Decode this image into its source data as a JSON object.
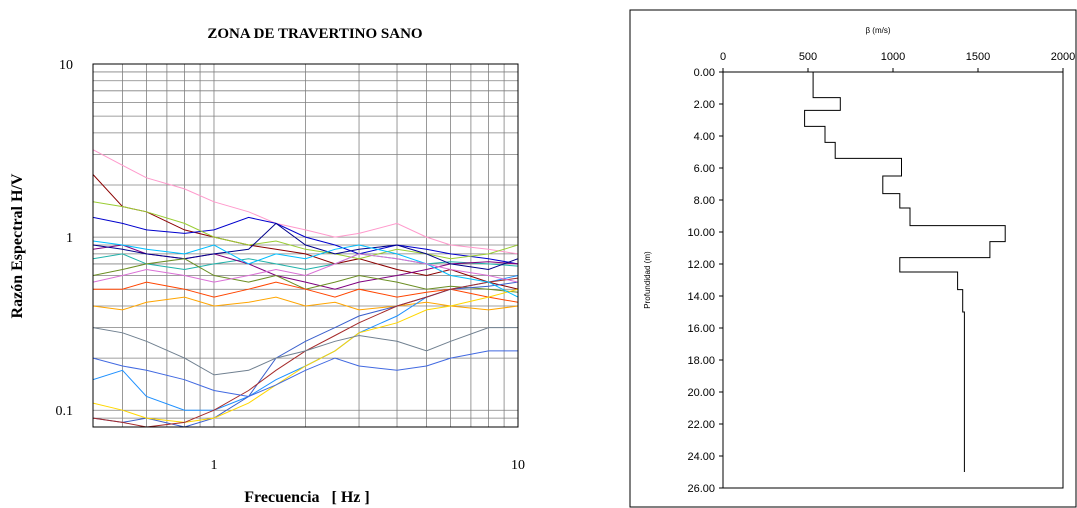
{
  "chart_data": [
    {
      "type": "line",
      "title": "ZONA DE TRAVERTINO SANO",
      "xlabel": "Frecuencia   [ Hz ]",
      "ylabel": "Razón Espectral H/V",
      "x_scale": "log",
      "y_scale": "log",
      "xlim": [
        0.4,
        10
      ],
      "ylim": [
        0.08,
        10
      ],
      "x_tick_labels": [
        {
          "value": 1,
          "label": "1"
        },
        {
          "value": 10,
          "label": "10"
        }
      ],
      "y_tick_labels": [
        {
          "value": 0.1,
          "label": "0.1"
        },
        {
          "value": 1,
          "label": "1"
        },
        {
          "value": 10,
          "label": "10"
        }
      ],
      "grid": true,
      "series": [
        {
          "color": "#8b0000",
          "x": [
            0.4,
            0.5,
            0.6,
            0.8,
            1,
            1.3,
            1.6,
            2,
            2.5,
            3,
            4,
            5,
            6,
            8,
            10
          ],
          "y": [
            2.3,
            1.5,
            1.4,
            1.1,
            1.0,
            0.9,
            0.85,
            0.8,
            0.7,
            0.75,
            0.65,
            0.6,
            0.65,
            0.55,
            0.5
          ]
        },
        {
          "color": "#ff99cc",
          "x": [
            0.4,
            0.5,
            0.6,
            0.8,
            1,
            1.3,
            1.6,
            2,
            2.5,
            3,
            4,
            5,
            6,
            8,
            10
          ],
          "y": [
            3.2,
            2.6,
            2.2,
            1.9,
            1.6,
            1.4,
            1.2,
            1.1,
            1.0,
            1.05,
            1.2,
            1.0,
            0.9,
            0.85,
            0.8
          ]
        },
        {
          "color": "#0000cd",
          "x": [
            0.4,
            0.5,
            0.6,
            0.8,
            1,
            1.3,
            1.6,
            2,
            2.5,
            3,
            4,
            5,
            6,
            8,
            10
          ],
          "y": [
            1.3,
            1.2,
            1.1,
            1.05,
            1.1,
            1.3,
            1.2,
            1.0,
            0.9,
            0.8,
            0.9,
            0.85,
            0.8,
            0.75,
            0.7
          ]
        },
        {
          "color": "#20b2aa",
          "x": [
            0.4,
            0.5,
            0.6,
            0.8,
            1,
            1.3,
            1.6,
            2,
            2.5,
            3,
            4,
            5,
            6,
            8,
            10
          ],
          "y": [
            0.75,
            0.8,
            0.7,
            0.65,
            0.7,
            0.75,
            0.7,
            0.65,
            0.7,
            0.8,
            0.75,
            0.7,
            0.72,
            0.7,
            0.68
          ]
        },
        {
          "color": "#9acd32",
          "x": [
            0.4,
            0.5,
            0.6,
            0.8,
            1,
            1.3,
            1.6,
            2,
            2.5,
            3,
            4,
            5,
            6,
            8,
            10
          ],
          "y": [
            1.6,
            1.5,
            1.4,
            1.2,
            1.0,
            0.9,
            0.95,
            0.85,
            0.8,
            0.75,
            0.85,
            0.8,
            0.75,
            0.8,
            0.9
          ]
        },
        {
          "color": "#800080",
          "x": [
            0.4,
            0.5,
            0.6,
            0.8,
            1,
            1.3,
            1.6,
            2,
            2.5,
            3,
            4,
            5,
            6,
            8,
            10
          ],
          "y": [
            0.85,
            0.9,
            0.8,
            0.75,
            0.8,
            0.7,
            0.6,
            0.55,
            0.5,
            0.55,
            0.6,
            0.65,
            0.7,
            0.72,
            0.7
          ]
        },
        {
          "color": "#ffa500",
          "x": [
            0.4,
            0.5,
            0.6,
            0.8,
            1,
            1.3,
            1.6,
            2,
            2.5,
            3,
            4,
            5,
            6,
            8,
            10
          ],
          "y": [
            0.4,
            0.38,
            0.42,
            0.45,
            0.4,
            0.42,
            0.45,
            0.4,
            0.42,
            0.38,
            0.4,
            0.42,
            0.4,
            0.38,
            0.4
          ]
        },
        {
          "color": "#00008b",
          "x": [
            0.4,
            0.5,
            0.6,
            0.8,
            1,
            1.3,
            1.6,
            2,
            2.5,
            3,
            4,
            5,
            6,
            8,
            10
          ],
          "y": [
            0.9,
            0.85,
            0.8,
            0.75,
            0.8,
            0.85,
            1.2,
            0.9,
            0.8,
            0.85,
            0.9,
            0.8,
            0.7,
            0.65,
            0.75
          ]
        },
        {
          "color": "#6b8e23",
          "x": [
            0.4,
            0.5,
            0.6,
            0.8,
            1,
            1.3,
            1.6,
            2,
            2.5,
            3,
            4,
            5,
            6,
            8,
            10
          ],
          "y": [
            0.6,
            0.65,
            0.7,
            0.75,
            0.6,
            0.55,
            0.6,
            0.5,
            0.55,
            0.6,
            0.55,
            0.5,
            0.52,
            0.5,
            0.48
          ]
        },
        {
          "color": "#ff4500",
          "x": [
            0.4,
            0.5,
            0.6,
            0.8,
            1,
            1.3,
            1.6,
            2,
            2.5,
            3,
            4,
            5,
            6,
            8,
            10
          ],
          "y": [
            0.5,
            0.5,
            0.55,
            0.5,
            0.45,
            0.5,
            0.55,
            0.5,
            0.45,
            0.5,
            0.45,
            0.48,
            0.5,
            0.45,
            0.42
          ]
        },
        {
          "color": "#1e90ff",
          "x": [
            0.4,
            0.5,
            0.6,
            0.8,
            1,
            1.3,
            1.6,
            2,
            2.5,
            3,
            4,
            5,
            6,
            8,
            10
          ],
          "y": [
            0.15,
            0.17,
            0.12,
            0.1,
            0.1,
            0.12,
            0.15,
            0.18,
            0.22,
            0.28,
            0.35,
            0.45,
            0.5,
            0.55,
            0.6
          ]
        },
        {
          "color": "#3a5fcd",
          "x": [
            0.4,
            0.5,
            0.6,
            0.8,
            1,
            1.3,
            1.6,
            2,
            2.5,
            3,
            4,
            5,
            6,
            8,
            10
          ],
          "y": [
            0.09,
            0.085,
            0.09,
            0.08,
            0.09,
            0.12,
            0.2,
            0.25,
            0.3,
            0.35,
            0.4,
            0.45,
            0.5,
            0.52,
            0.55
          ]
        },
        {
          "color": "#ffd700",
          "x": [
            0.4,
            0.5,
            0.6,
            0.8,
            1,
            1.3,
            1.6,
            2,
            2.5,
            3,
            4,
            5,
            6,
            8,
            10
          ],
          "y": [
            0.11,
            0.1,
            0.09,
            0.085,
            0.09,
            0.11,
            0.14,
            0.18,
            0.22,
            0.28,
            0.32,
            0.38,
            0.4,
            0.45,
            0.5
          ]
        },
        {
          "color": "#a52a2a",
          "x": [
            0.4,
            0.5,
            0.6,
            0.8,
            1,
            1.3,
            1.6,
            2,
            2.5,
            3,
            4,
            5,
            6,
            8,
            10
          ],
          "y": [
            0.09,
            0.085,
            0.08,
            0.085,
            0.1,
            0.13,
            0.17,
            0.22,
            0.27,
            0.32,
            0.4,
            0.45,
            0.5,
            0.55,
            0.58
          ]
        },
        {
          "color": "#708090",
          "x": [
            0.4,
            0.5,
            0.6,
            0.8,
            1,
            1.3,
            1.6,
            2,
            2.5,
            3,
            4,
            5,
            6,
            8,
            10
          ],
          "y": [
            0.3,
            0.28,
            0.25,
            0.2,
            0.16,
            0.17,
            0.2,
            0.22,
            0.25,
            0.27,
            0.25,
            0.22,
            0.25,
            0.3,
            0.3
          ]
        },
        {
          "color": "#4169e1",
          "x": [
            0.4,
            0.5,
            0.6,
            0.8,
            1,
            1.3,
            1.6,
            2,
            2.5,
            3,
            4,
            5,
            6,
            8,
            10
          ],
          "y": [
            0.2,
            0.18,
            0.17,
            0.15,
            0.13,
            0.12,
            0.14,
            0.17,
            0.2,
            0.18,
            0.17,
            0.18,
            0.2,
            0.22,
            0.22
          ]
        },
        {
          "color": "#00bfff",
          "x": [
            0.4,
            0.5,
            0.6,
            0.8,
            1,
            1.3,
            1.6,
            2,
            2.5,
            3,
            4,
            5,
            6,
            8,
            10
          ],
          "y": [
            0.95,
            0.9,
            0.85,
            0.8,
            0.9,
            0.7,
            0.8,
            0.75,
            0.85,
            0.9,
            0.8,
            0.7,
            0.6,
            0.55,
            0.45
          ]
        },
        {
          "color": "#da70d6",
          "x": [
            0.4,
            0.5,
            0.6,
            0.8,
            1,
            1.3,
            1.6,
            2,
            2.5,
            3,
            4,
            5,
            6,
            8,
            10
          ],
          "y": [
            0.55,
            0.6,
            0.65,
            0.6,
            0.55,
            0.6,
            0.65,
            0.6,
            0.7,
            0.8,
            0.75,
            0.7,
            0.65,
            0.6,
            0.55
          ]
        }
      ]
    },
    {
      "type": "line",
      "title": "β (m/s)",
      "ylabel": "Profundidad (m)",
      "x_axis_position": "top",
      "y_axis_inverted": true,
      "xlim": [
        0,
        2000
      ],
      "ylim": [
        0,
        26
      ],
      "x_tick_labels": [
        {
          "value": 0,
          "label": "0"
        },
        {
          "value": 500,
          "label": "500"
        },
        {
          "value": 1000,
          "label": "1000"
        },
        {
          "value": 1500,
          "label": "1500"
        },
        {
          "value": 2000,
          "label": "2000"
        }
      ],
      "y_tick_labels": [
        {
          "value": 0,
          "label": "0.00"
        },
        {
          "value": 2,
          "label": "2.00"
        },
        {
          "value": 4,
          "label": "4.00"
        },
        {
          "value": 6,
          "label": "6.00"
        },
        {
          "value": 8,
          "label": "8.00"
        },
        {
          "value": 10,
          "label": "10.00"
        },
        {
          "value": 12,
          "label": "12.00"
        },
        {
          "value": 14,
          "label": "14.00"
        },
        {
          "value": 16,
          "label": "16.00"
        },
        {
          "value": 18,
          "label": "18.00"
        },
        {
          "value": 20,
          "label": "20.00"
        },
        {
          "value": 22,
          "label": "22.00"
        },
        {
          "value": 24,
          "label": "24.00"
        },
        {
          "value": 26,
          "label": "26.00"
        }
      ],
      "grid": false,
      "profile": {
        "color": "#000000",
        "points": [
          [
            530,
            0
          ],
          [
            530,
            1.6
          ],
          [
            690,
            1.6
          ],
          [
            690,
            2.4
          ],
          [
            480,
            2.4
          ],
          [
            480,
            3.4
          ],
          [
            600,
            3.4
          ],
          [
            600,
            4.4
          ],
          [
            660,
            4.4
          ],
          [
            660,
            5.4
          ],
          [
            1050,
            5.4
          ],
          [
            1050,
            6.5
          ],
          [
            940,
            6.5
          ],
          [
            940,
            7.6
          ],
          [
            1040,
            7.6
          ],
          [
            1040,
            8.5
          ],
          [
            1100,
            8.5
          ],
          [
            1100,
            9.6
          ],
          [
            1660,
            9.6
          ],
          [
            1660,
            10.6
          ],
          [
            1570,
            10.6
          ],
          [
            1570,
            11.6
          ],
          [
            1040,
            11.6
          ],
          [
            1040,
            12.5
          ],
          [
            1380,
            12.5
          ],
          [
            1380,
            13.6
          ],
          [
            1410,
            13.6
          ],
          [
            1410,
            15
          ],
          [
            1420,
            15
          ],
          [
            1420,
            25
          ]
        ]
      }
    }
  ]
}
